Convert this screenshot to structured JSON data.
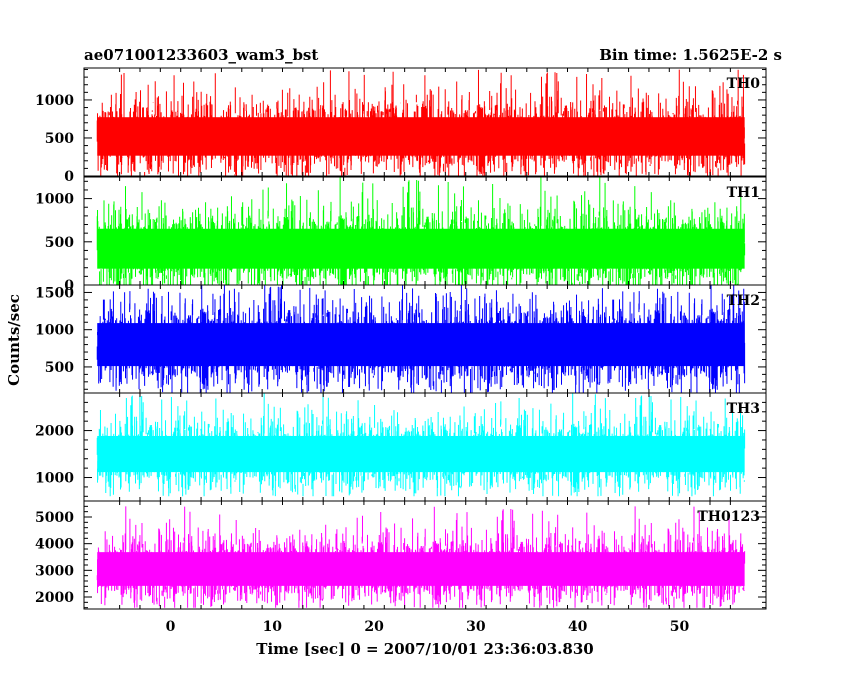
{
  "header": {
    "title": "ae071001233603_wam3_bst",
    "bin_time": "Bin time: 1.5625E-2 s"
  },
  "chart_data": {
    "type": "line",
    "xlabel": "Time [sec] 0 = 2007/10/01 23:36:03.830",
    "ylabel": "Counts/sec",
    "xlim": [
      -8.5,
      58.5
    ],
    "x_ticks": [
      0,
      10,
      20,
      30,
      40,
      50
    ],
    "x_tick_labels": [
      "0",
      "10",
      "20",
      "30",
      "40",
      "50"
    ],
    "data_x_range": [
      -7.2,
      56.4
    ],
    "bin_time_s": 0.015625,
    "grid": false,
    "panels": [
      {
        "name": "TH0",
        "color": "#ff0000",
        "ylim": [
          0,
          1420
        ],
        "yticks": [
          0,
          500,
          1000
        ],
        "ytick_labels": [
          "0",
          "500",
          "1000"
        ],
        "mean": 520,
        "typical_min": 80,
        "typical_max": 1000,
        "min": 0,
        "max": 1400
      },
      {
        "name": "TH1",
        "color": "#00ff00",
        "ylim": [
          0,
          1250
        ],
        "yticks": [
          0,
          500,
          1000
        ],
        "ytick_labels": [
          "0",
          "500",
          "1000"
        ],
        "mean": 420,
        "typical_min": 60,
        "typical_max": 900,
        "min": 0,
        "max": 1250
      },
      {
        "name": "TH2",
        "color": "#0000ff",
        "ylim": [
          150,
          1600
        ],
        "yticks": [
          500,
          1000,
          1500
        ],
        "ytick_labels": [
          "500",
          "1000",
          "1500"
        ],
        "mean": 800,
        "typical_min": 300,
        "typical_max": 1350,
        "min": 150,
        "max": 1600
      },
      {
        "name": "TH3",
        "color": "#00ffff",
        "ylim": [
          500,
          2800
        ],
        "yticks": [
          1000,
          2000
        ],
        "ytick_labels": [
          "1000",
          "2000"
        ],
        "mean": 1500,
        "typical_min": 900,
        "typical_max": 2300,
        "min": 600,
        "max": 2800
      },
      {
        "name": "TH0123",
        "color": "#ff00ff",
        "ylim": [
          1550,
          5600
        ],
        "yticks": [
          2000,
          3000,
          4000,
          5000
        ],
        "ytick_labels": [
          "2000",
          "3000",
          "4000",
          "5000"
        ],
        "mean": 3050,
        "typical_min": 2000,
        "typical_max": 4300,
        "min": 1600,
        "max": 5400
      }
    ]
  }
}
